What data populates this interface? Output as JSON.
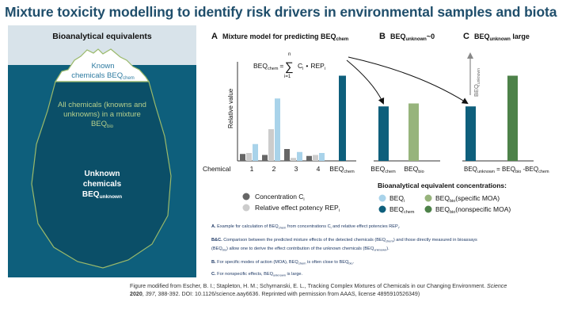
{
  "title": "Mixture toxicity modelling to identify risk drivers in environmental samples and biota",
  "colors": {
    "title": "#1f4e6b",
    "sea": "#0e5f7c",
    "sea_deep": "#0b4f68",
    "sky": "#d8e3ea",
    "ice_outline": "#9ab96a",
    "conc": "#666666",
    "rep": "#cccccc",
    "beq_i": "#a9d3ea",
    "beq_chem": "#0e5f7c",
    "beq_bio_specific": "#97b47c",
    "beq_bio_nonspecific": "#4d8249"
  },
  "iceberg": {
    "header": "Bioanalytical equivalents",
    "known_line1": "Known",
    "known_line2": "chemicals BEQ",
    "known_sub": "chem",
    "all_line1": "All chemicals (knowns and",
    "all_line2": "unknowns) in a mixture",
    "all_line3": "BEQ",
    "all_sub": "bio",
    "unknown_line1": "Unknown",
    "unknown_line2": "chemicals",
    "unknown_line3": "BEQ",
    "unknown_sub": "unknown"
  },
  "panels": {
    "a_letter": "A",
    "a_title": "Mixture model for predicting BEQ",
    "a_title_sub": "chem",
    "b_letter": "B",
    "b_title": "BEQ",
    "b_title_sub": "unknown",
    "b_title_rest": "~0",
    "c_letter": "C",
    "c_title": "BEQ",
    "c_title_sub": "unknown",
    "c_title_rest": " large"
  },
  "formula": {
    "lhs": "BEQ",
    "lhs_sub": "chem",
    "eq": "=",
    "sigma": "∑",
    "upper": "n",
    "lower": "i=1",
    "term1": "C",
    "term1_sub": "i",
    "dot": "•",
    "term2": "REP",
    "term2_sub": "i"
  },
  "chart_data": {
    "type": "bar",
    "title": "Mixture model for predicting BEQchem",
    "ylabel": "Relative value",
    "xlabel": "Chemical",
    "ylim": [
      0,
      100
    ],
    "categories": [
      "1",
      "2",
      "3",
      "4",
      "BEQchem"
    ],
    "series": [
      {
        "name": "Concentration Ci",
        "values": [
          7,
          6,
          12,
          5,
          null
        ]
      },
      {
        "name": "Relative effect potency REPi",
        "values": [
          8,
          32,
          3,
          6,
          null
        ]
      },
      {
        "name": "BEQi",
        "values": [
          17,
          63,
          9,
          8,
          null
        ]
      },
      {
        "name": "BEQchem",
        "values": [
          null,
          null,
          null,
          null,
          86
        ]
      }
    ],
    "panel_b": {
      "categories": [
        "BEQchem",
        "BEQbio"
      ],
      "values": [
        55,
        58
      ],
      "note": "BEQunknown~0"
    },
    "panel_c": {
      "categories": [
        "BEQchem",
        "BEQbio"
      ],
      "values": [
        55,
        86
      ],
      "annotation": "BEQunknown",
      "note": "BEQunknown = BEQbio - BEQchem"
    }
  },
  "axis": {
    "ylabel": "Relative value",
    "xlabel": "Chemical",
    "ticks": [
      "1",
      "2",
      "3",
      "4"
    ],
    "beq": "BEQ",
    "beq_sub": "chem",
    "bio": "BEQ",
    "bio_sub": "bio",
    "c_label_lhs": "BEQ",
    "c_label_lhs_sub": "unknown",
    "c_label_eq": " = BEQ",
    "c_label_bio_sub": "bio",
    "c_label_minus": " -BEQ",
    "c_label_chem_sub": "chem",
    "c_arrow_label": "BEQ",
    "c_arrow_sub": "unknown"
  },
  "legend": {
    "left_conc": "Concentration C",
    "left_conc_sub": "i",
    "left_rep": "Relative effect potency REP",
    "left_rep_sub": "i",
    "right_title": "Bioanalytical equivalent concentrations:",
    "beq_i": "BEQ",
    "beq_i_sub": "i",
    "beq_chem": "BEQ",
    "beq_chem_sub": "chem",
    "bio_specific": "BEQ",
    "bio_specific_sub": "bio",
    "bio_specific_rest": "(specific MOA)",
    "bio_nonspecific": "BEQ",
    "bio_nonspecific_sub": "bio",
    "bio_nonspecific_rest": "(nonspecific MOA)"
  },
  "notes": {
    "a_label": "A.",
    "a_text": " Example for calculation of BEQ",
    "a_sub1": "chem",
    "a_text2": " from concentrations C",
    "a_sub2": "i",
    "a_text3": " and relative effect potencies REP",
    "a_sub3": "i",
    "a_text4": ".",
    "bc_label": "B&C.",
    "bc_text1": " Comparison between the predicted mixture effects of the detected chemicals (BEQ",
    "bc_sub1": "chem",
    "bc_text2": ") and those directly measured in bioassays",
    "bc_text3": "(BEQ",
    "bc_sub2": "bio",
    "bc_text4": ") allow one to derive the effect contribution of the unknown chemicals (BEQ",
    "bc_sub3": "unknown",
    "bc_text5": ").",
    "b_label": "B.",
    "b_text": " For specific modes of action (MOA), BEQ",
    "b_sub": "chem",
    "b_text2": " is often close to BEQ",
    "b_sub2": "bio",
    "b_text3": ".",
    "c_label": "C.",
    "c_text": " For nonspecific effects, BEQ",
    "c_sub": "unknown",
    "c_text2": " is large."
  },
  "caption": {
    "line1": "Figure modified from Escher, B. I.; Stapleton, H. M.; Schymanski, E. L., Tracking Complex Mixtures of Chemicals in our Changing Environment.",
    "journal": "Science",
    "year": "2020",
    "volume": "397",
    "rest": ", 388-392. DOI: 10.1126/science.aay6636. Reprinted with permission from AAAS, license 4895910526349)"
  }
}
